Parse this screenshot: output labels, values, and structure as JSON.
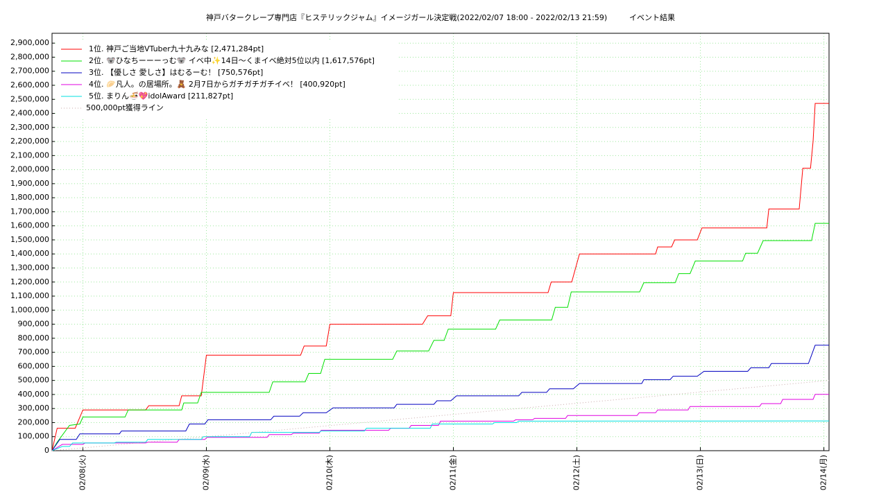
{
  "chart_data": {
    "type": "line",
    "title": "神戸バタークレープ専門店『ヒステリックジャム』イメージガール決定戦(2022/02/07 18:00 - 2022/02/13 21:59)",
    "subtitle": "イベント結果",
    "xlim": [
      0,
      151
    ],
    "xticks": [
      {
        "value": 6,
        "label": "02/08(火)"
      },
      {
        "value": 30,
        "label": "02/09(水)"
      },
      {
        "value": 54,
        "label": "02/10(木)"
      },
      {
        "value": 78,
        "label": "02/11(金)"
      },
      {
        "value": 102,
        "label": "02/12(土)"
      },
      {
        "value": 126,
        "label": "02/13(日)"
      },
      {
        "value": 150,
        "label": "02/14(月)"
      }
    ],
    "ylim": [
      0,
      2970000
    ],
    "yticks": [
      0,
      {
        "value": 100000,
        "label": "100,000"
      },
      {
        "value": 200000,
        "label": "200,000"
      },
      {
        "value": 300000,
        "label": "300,000"
      },
      {
        "value": 400000,
        "label": "400,000"
      },
      {
        "value": 500000,
        "label": "500,000"
      },
      {
        "value": 600000,
        "label": "600,000"
      },
      {
        "value": 700000,
        "label": "700,000"
      },
      {
        "value": 800000,
        "label": "800,000"
      },
      {
        "value": 900000,
        "label": "900,000"
      },
      {
        "value": 1000000,
        "label": "1,000,000"
      },
      {
        "value": 1100000,
        "label": "1,100,000"
      },
      {
        "value": 1200000,
        "label": "1,200,000"
      },
      {
        "value": 1300000,
        "label": "1,300,000"
      },
      {
        "value": 1400000,
        "label": "1,400,000"
      },
      {
        "value": 1500000,
        "label": "1,500,000"
      },
      {
        "value": 1600000,
        "label": "1,600,000"
      },
      {
        "value": 1700000,
        "label": "1,700,000"
      },
      {
        "value": 1800000,
        "label": "1,800,000"
      },
      {
        "value": 1900000,
        "label": "1,900,000"
      },
      {
        "value": 2000000,
        "label": "2,000,000"
      },
      {
        "value": 2100000,
        "label": "2,100,000"
      },
      {
        "value": 2200000,
        "label": "2,200,000"
      },
      {
        "value": 2300000,
        "label": "2,300,000"
      },
      {
        "value": 2400000,
        "label": "2,400,000"
      },
      {
        "value": 2500000,
        "label": "2,500,000"
      },
      {
        "value": 2600000,
        "label": "2,600,000"
      },
      {
        "value": 2700000,
        "label": "2,700,000"
      },
      {
        "value": 2800000,
        "label": "2,800,000"
      },
      {
        "value": 2900000,
        "label": "2,900,000"
      }
    ],
    "grid": true,
    "legend": "upper left",
    "series": [
      {
        "name": "1位. 神戸ご当地VTuber九十九みな [2,471,284pt]",
        "color": "#ff0000",
        "x": [
          0,
          1,
          4.5,
          6,
          18.2,
          18.8,
          24.7,
          25.2,
          29,
          30,
          48.3,
          49,
          53.3,
          54,
          72,
          73,
          77.5,
          78,
          96.4,
          97,
          101,
          102.5,
          117.3,
          117.7,
          120.4,
          121,
          125.4,
          126.3,
          138.9,
          139.3,
          145.2,
          145.9,
          147.4,
          147.9,
          148.3,
          151
        ],
        "values": [
          0,
          160000,
          160000,
          290000,
          290000,
          320000,
          320000,
          390000,
          390000,
          680000,
          680000,
          745000,
          745000,
          900000,
          900000,
          960000,
          960000,
          1125000,
          1125000,
          1200000,
          1200000,
          1400000,
          1400000,
          1450000,
          1450000,
          1500000,
          1500000,
          1585000,
          1585000,
          1720000,
          1720000,
          2010000,
          2010000,
          2200000,
          2471284,
          2471284
        ]
      },
      {
        "name": "2位. 🐨ひなちーーーっむ🐨 イベ中✨14日〜くまイベ絶対5位以内 [1,617,576pt]",
        "color": "#00e000",
        "x": [
          0,
          1,
          3.4,
          5.4,
          6,
          14.2,
          14.8,
          25.2,
          25.6,
          28.3,
          29,
          42.2,
          42.9,
          49.2,
          49.9,
          52.2,
          53,
          66.2,
          67,
          73.2,
          74.2,
          76.2,
          77,
          86.2,
          87,
          97.1,
          97.8,
          100.2,
          100.9,
          114.2,
          115,
          121.1,
          121.8,
          124,
          125,
          134.2,
          134.8,
          137.1,
          138.2,
          147.6,
          148.3,
          151
        ],
        "values": [
          0,
          60000,
          180000,
          190000,
          240000,
          240000,
          290000,
          290000,
          340000,
          340000,
          415000,
          415000,
          490000,
          490000,
          550000,
          550000,
          650000,
          650000,
          710000,
          710000,
          785000,
          785000,
          865000,
          865000,
          930000,
          930000,
          1020000,
          1020000,
          1130000,
          1130000,
          1195000,
          1195000,
          1260000,
          1260000,
          1350000,
          1350000,
          1405000,
          1405000,
          1495000,
          1495000,
          1617576,
          1617576
        ]
      },
      {
        "name": "3位. 【優しさ 愛しさ】はむるーむ！ [750,576pt]",
        "color": "#0000c0",
        "x": [
          0,
          1.5,
          4.7,
          5.4,
          13.1,
          13.5,
          26,
          26.7,
          29.7,
          30.3,
          42.5,
          43.1,
          48.1,
          48.8,
          53.3,
          54.6,
          66.5,
          67,
          74.2,
          74.8,
          77.5,
          78.6,
          90.7,
          91.3,
          96.1,
          96.7,
          101.3,
          102.5,
          114.6,
          115,
          120.1,
          120.7,
          125.4,
          126.7,
          135.2,
          135.8,
          139.3,
          139.8,
          147,
          147.6,
          148.3,
          151
        ],
        "values": [
          0,
          80000,
          80000,
          120000,
          120000,
          140000,
          140000,
          190000,
          190000,
          220000,
          220000,
          245000,
          245000,
          270000,
          270000,
          305000,
          305000,
          330000,
          330000,
          355000,
          355000,
          390000,
          390000,
          415000,
          415000,
          440000,
          440000,
          478000,
          478000,
          505000,
          505000,
          530000,
          530000,
          565000,
          565000,
          590000,
          590000,
          620000,
          620000,
          680000,
          750576,
          750576
        ]
      },
      {
        "name": "4位. 🥟凡人。の居場所。🧸 2月7日からガチガチガチイベ！ [400,920pt]",
        "color": "#e000e0",
        "x": [
          0,
          2,
          6,
          6.4,
          18.2,
          18.6,
          24.3,
          24.7,
          29.7,
          30.1,
          41.8,
          42.2,
          46.5,
          46.9,
          51.9,
          52.3,
          65.4,
          65.8,
          69.4,
          69.8,
          75.1,
          75.5,
          89.7,
          90.1,
          93.4,
          93.8,
          99.8,
          100.2,
          113.7,
          114.1,
          117.3,
          117.7,
          123.6,
          124,
          137.5,
          137.9,
          141.6,
          142,
          147.9,
          148.3,
          151
        ],
        "values": [
          0,
          45000,
          45000,
          55000,
          55000,
          60000,
          60000,
          80000,
          80000,
          95000,
          95000,
          115000,
          115000,
          125000,
          125000,
          145000,
          145000,
          160000,
          160000,
          180000,
          180000,
          210000,
          210000,
          220000,
          220000,
          230000,
          230000,
          250000,
          250000,
          270000,
          270000,
          290000,
          290000,
          315000,
          315000,
          335000,
          335000,
          365000,
          365000,
          400920,
          400920
        ]
      },
      {
        "name": "5位. まりん🍜💖idolAward [211,827pt]",
        "color": "#00e0e0",
        "x": [
          0,
          2,
          3.4,
          4,
          12.1,
          12.5,
          18.2,
          18.6,
          29,
          29.4,
          38.4,
          38.8,
          51.9,
          52.3,
          60.7,
          61.1,
          73.5,
          73.9,
          85.6,
          86,
          90.3,
          90.7,
          151
        ],
        "values": [
          0,
          30000,
          30000,
          55000,
          55000,
          60000,
          60000,
          80000,
          80000,
          100000,
          100000,
          130000,
          130000,
          140000,
          140000,
          160000,
          160000,
          190000,
          190000,
          200000,
          200000,
          210000,
          211827
        ]
      },
      {
        "name": "500,000pt獲得ライン",
        "color": "#c8a8a8",
        "style": "dotted",
        "x": [
          0,
          151
        ],
        "values": [
          0,
          500000
        ]
      }
    ]
  }
}
